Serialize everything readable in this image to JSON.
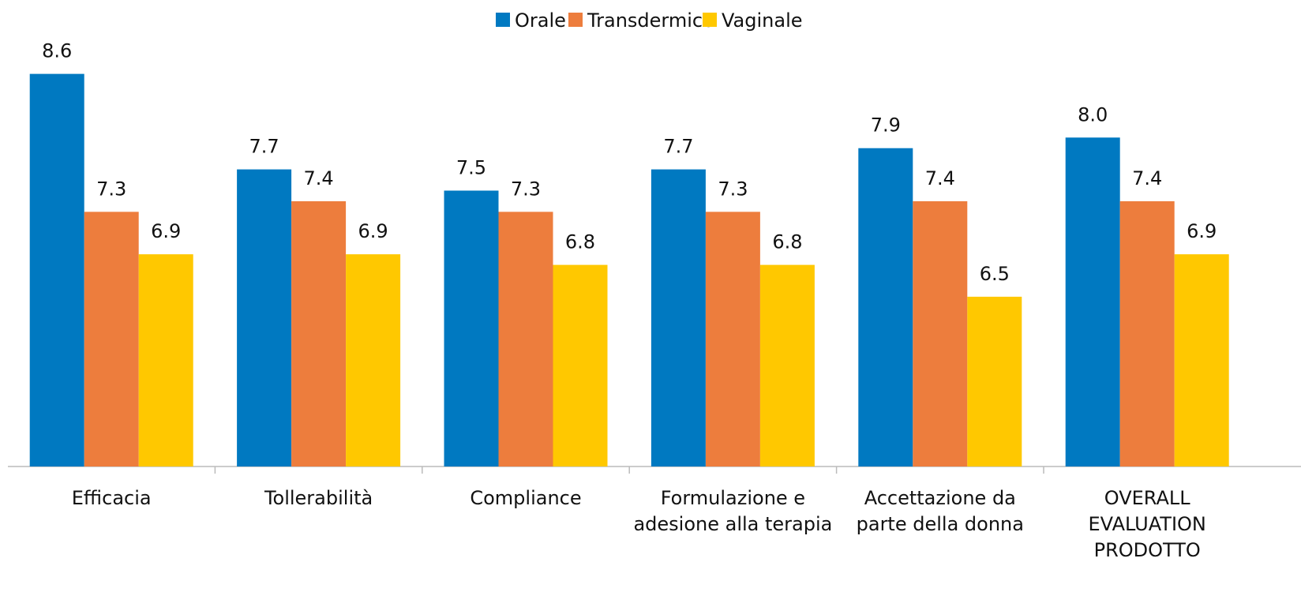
{
  "chart_data": {
    "type": "bar",
    "categories": [
      "Efficacia",
      "Tollerabilità",
      "Compliance",
      "Formulazione e\nadesione alla terapia",
      "Accettazione da\nparte della donna",
      "OVERALL\nEVALUATION\nPRODOTTO"
    ],
    "series": [
      {
        "name": "Orale",
        "color": "#0079c1",
        "values": [
          8.6,
          7.7,
          7.5,
          7.7,
          7.9,
          8.0
        ],
        "value_labels": [
          "8.6",
          "7.7",
          "7.5",
          "7.7",
          "7.9",
          "8.0"
        ]
      },
      {
        "name": "Transdermico",
        "color": "#ed7d3d",
        "values": [
          7.3,
          7.4,
          7.3,
          7.3,
          7.4,
          7.4
        ],
        "value_labels": [
          "7.3",
          "7.4",
          "7.3",
          "7.3",
          "7.4",
          "7.4"
        ]
      },
      {
        "name": "Vaginale",
        "color": "#ffc800",
        "values": [
          6.9,
          6.9,
          6.8,
          6.8,
          6.5,
          6.9
        ],
        "value_labels": [
          "6.9",
          "6.9",
          "6.8",
          "6.8",
          "6.5",
          "6.9"
        ]
      }
    ],
    "ylim": [
      4.9,
      8.85
    ],
    "legend": "top"
  }
}
